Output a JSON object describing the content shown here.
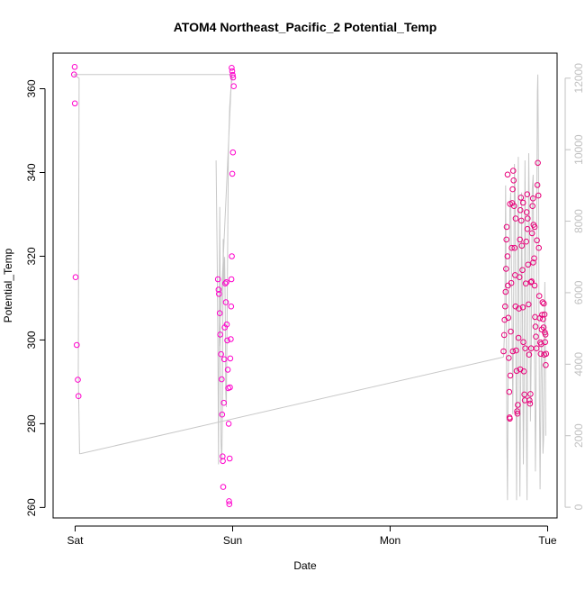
{
  "chart_data": {
    "type": "scatter",
    "title": "ATOM4 Northeast_Pacific_2 Potential_Temp",
    "xlabel": "Date",
    "ylabel": "Potential_Temp",
    "x_ticks": [
      {
        "day": 0,
        "label": "Sat"
      },
      {
        "day": 1,
        "label": "Sun"
      },
      {
        "day": 2,
        "label": "Mon"
      },
      {
        "day": 3,
        "label": "Tue"
      }
    ],
    "y_ticks": [
      260,
      280,
      300,
      320,
      340,
      360
    ],
    "y_right_ticks": [
      0,
      2000,
      4000,
      6000,
      8000,
      10000,
      12000
    ],
    "xlim": [
      -0.14,
      3.06
    ],
    "ylim": [
      257.5,
      368.5
    ],
    "y_right_lim": [
      -300,
      12700
    ],
    "colors": {
      "points": "#ff00cc",
      "points_dense": "#e8007a",
      "secondary_line": "#c8c8c8",
      "right_axis": "#c0c0c0"
    },
    "series": [
      {
        "values": [
          [
            -0.003,
            365.2
          ],
          [
            -0.007,
            363.4
          ],
          [
            -0.002,
            356.5
          ],
          [
            0.003,
            315.0
          ],
          [
            0.01,
            298.8
          ],
          [
            0.017,
            290.5
          ],
          [
            0.021,
            286.6
          ],
          [
            0.907,
            314.5
          ],
          [
            0.911,
            312.0
          ],
          [
            0.913,
            311.0
          ],
          [
            0.918,
            306.4
          ],
          [
            0.921,
            301.3
          ],
          [
            0.926,
            296.6
          ],
          [
            0.93,
            290.6
          ],
          [
            0.933,
            282.2
          ],
          [
            0.936,
            272.2
          ],
          [
            0.938,
            271.1
          ],
          [
            0.94,
            264.9
          ],
          [
            0.944,
            285.0
          ],
          [
            0.947,
            295.4
          ],
          [
            0.95,
            303.0
          ],
          [
            0.953,
            313.5
          ],
          [
            0.957,
            309.0
          ],
          [
            0.96,
            313.8
          ],
          [
            0.963,
            303.7
          ],
          [
            0.966,
            299.9
          ],
          [
            0.969,
            292.9
          ],
          [
            0.972,
            288.5
          ],
          [
            0.975,
            280.0
          ],
          [
            0.977,
            261.5
          ],
          [
            0.979,
            260.8
          ],
          [
            0.981,
            271.7
          ],
          [
            0.983,
            288.7
          ],
          [
            0.985,
            295.6
          ],
          [
            0.988,
            300.2
          ],
          [
            0.99,
            308.0
          ],
          [
            0.992,
            314.5
          ],
          [
            0.995,
            320.0
          ],
          [
            0.998,
            339.7
          ],
          [
            1.002,
            344.8
          ],
          [
            0.994,
            365.0
          ],
          [
            0.997,
            364.2
          ],
          [
            1.0,
            363.3
          ],
          [
            1.003,
            362.7
          ],
          [
            1.007,
            360.6
          ],
          [
            2.72,
            297.3
          ],
          [
            2.724,
            301.2
          ],
          [
            2.727,
            304.8
          ],
          [
            2.73,
            308.0
          ],
          [
            2.733,
            311.5
          ],
          [
            2.736,
            317.0
          ],
          [
            2.738,
            324.0
          ],
          [
            2.74,
            327.0
          ],
          [
            2.745,
            320.0
          ],
          [
            2.748,
            313.0
          ],
          [
            2.75,
            305.3
          ],
          [
            2.753,
            295.7
          ],
          [
            2.756,
            287.6
          ],
          [
            2.758,
            281.5
          ],
          [
            2.76,
            281.2
          ],
          [
            2.763,
            291.5
          ],
          [
            2.766,
            302.0
          ],
          [
            2.769,
            313.6
          ],
          [
            2.772,
            322.0
          ],
          [
            2.775,
            332.7
          ],
          [
            2.778,
            336.0
          ],
          [
            2.781,
            340.4
          ],
          [
            2.784,
            338.1
          ],
          [
            2.787,
            332.0
          ],
          [
            2.79,
            322.0
          ],
          [
            2.793,
            315.5
          ],
          [
            2.796,
            308.0
          ],
          [
            2.8,
            297.5
          ],
          [
            2.803,
            292.6
          ],
          [
            2.806,
            283.0
          ],
          [
            2.808,
            282.4
          ],
          [
            2.811,
            284.5
          ],
          [
            2.815,
            300.5
          ],
          [
            2.818,
            307.5
          ],
          [
            2.821,
            315.0
          ],
          [
            2.824,
            324.0
          ],
          [
            2.827,
            331.0
          ],
          [
            2.83,
            334.0
          ],
          [
            2.833,
            328.5
          ],
          [
            2.836,
            322.5
          ],
          [
            2.84,
            316.7
          ],
          [
            2.843,
            307.8
          ],
          [
            2.846,
            299.5
          ],
          [
            2.849,
            292.5
          ],
          [
            2.852,
            287.0
          ],
          [
            2.855,
            285.6
          ],
          [
            2.858,
            298.0
          ],
          [
            2.861,
            313.5
          ],
          [
            2.864,
            323.5
          ],
          [
            2.867,
            330.5
          ],
          [
            2.87,
            334.8
          ],
          [
            2.873,
            329.0
          ],
          [
            2.876,
            318.0
          ],
          [
            2.879,
            308.5
          ],
          [
            2.882,
            296.5
          ],
          [
            2.885,
            285.6
          ],
          [
            2.888,
            284.8
          ],
          [
            2.891,
            287.1
          ],
          [
            2.895,
            298.0
          ],
          [
            2.898,
            314.0
          ],
          [
            2.901,
            325.5
          ],
          [
            2.904,
            332.0
          ],
          [
            2.907,
            333.8
          ],
          [
            2.91,
            327.5
          ],
          [
            2.914,
            319.5
          ],
          [
            2.917,
            313.0
          ],
          [
            2.92,
            305.5
          ],
          [
            2.923,
            303.2
          ],
          [
            2.926,
            300.8
          ],
          [
            2.929,
            298.0
          ],
          [
            2.932,
            323.8
          ],
          [
            2.935,
            337.0
          ],
          [
            2.938,
            342.3
          ],
          [
            2.941,
            334.5
          ],
          [
            2.944,
            322.0
          ],
          [
            2.947,
            310.5
          ],
          [
            2.95,
            305.2
          ],
          [
            2.953,
            299.4
          ],
          [
            2.956,
            296.7
          ],
          [
            2.959,
            299.0
          ],
          [
            2.962,
            302.5
          ],
          [
            2.965,
            306.0
          ],
          [
            2.968,
            309.0
          ],
          [
            2.971,
            305.0
          ],
          [
            2.974,
            303.0
          ],
          [
            2.976,
            308.7
          ],
          [
            2.978,
            296.5
          ],
          [
            2.98,
            306.1
          ],
          [
            2.982,
            301.8
          ],
          [
            2.984,
            299.5
          ],
          [
            2.986,
            301.3
          ],
          [
            2.988,
            294.0
          ],
          [
            2.99,
            296.7
          ],
          [
            2.746,
            339.5
          ],
          [
            2.761,
            332.5
          ],
          [
            2.779,
            297.3
          ],
          [
            2.797,
            329.0
          ],
          [
            2.826,
            293.0
          ],
          [
            2.844,
            332.8
          ],
          [
            2.872,
            326.5
          ],
          [
            2.893,
            313.8
          ],
          [
            2.908,
            318.5
          ],
          [
            2.918,
            327.0
          ]
        ]
      }
    ],
    "secondary_series": {
      "axis": "right",
      "style": "line",
      "values": [
        [
          -0.01,
          12100
        ],
        [
          0.025,
          12000
        ],
        [
          0.02,
          3800
        ],
        [
          0.028,
          1500
        ],
        [
          0.035,
          1500
        ],
        [
          0.895,
          9700
        ],
        [
          0.902,
          7000
        ],
        [
          0.907,
          4000
        ],
        [
          0.91,
          1200
        ],
        [
          0.913,
          4000
        ],
        [
          0.918,
          8400
        ],
        [
          0.922,
          5600
        ],
        [
          0.926,
          1800
        ],
        [
          0.931,
          1300
        ],
        [
          0.935,
          2400
        ],
        [
          0.94,
          7500
        ],
        [
          0.945,
          6200
        ],
        [
          0.949,
          7000
        ],
        [
          0.953,
          5500
        ],
        [
          0.956,
          3200
        ],
        [
          0.96,
          2800
        ],
        [
          0.966,
          5800
        ],
        [
          0.973,
          10000
        ],
        [
          0.981,
          11200
        ],
        [
          0.99,
          11800
        ],
        [
          0.998,
          12000
        ],
        [
          0.994,
          12100
        ],
        [
          0.915,
          4500
        ],
        [
          2.72,
          4200
        ],
        [
          2.728,
          5100
        ],
        [
          2.733,
          9000
        ],
        [
          2.737,
          6000
        ],
        [
          2.741,
          1900
        ],
        [
          2.745,
          200
        ],
        [
          2.749,
          3500
        ],
        [
          2.754,
          5200
        ],
        [
          2.76,
          8300
        ],
        [
          2.766,
          8800
        ],
        [
          2.773,
          5600
        ],
        [
          2.779,
          2600
        ],
        [
          2.783,
          5000
        ],
        [
          2.789,
          9600
        ],
        [
          2.795,
          8400
        ],
        [
          2.798,
          4500
        ],
        [
          2.803,
          200
        ],
        [
          2.808,
          5200
        ],
        [
          2.814,
          9800
        ],
        [
          2.819,
          4100
        ],
        [
          2.824,
          300
        ],
        [
          2.83,
          4400
        ],
        [
          2.835,
          8800
        ],
        [
          2.84,
          5400
        ],
        [
          2.846,
          1200
        ],
        [
          2.85,
          3100
        ],
        [
          2.856,
          9700
        ],
        [
          2.86,
          7400
        ],
        [
          2.865,
          2300
        ],
        [
          2.869,
          200
        ],
        [
          2.874,
          5400
        ],
        [
          2.88,
          9900
        ],
        [
          2.886,
          7000
        ],
        [
          2.891,
          2400
        ],
        [
          2.896,
          4200
        ],
        [
          2.902,
          8900
        ],
        [
          2.908,
          9300
        ],
        [
          2.913,
          5600
        ],
        [
          2.918,
          3800
        ],
        [
          2.922,
          1000
        ],
        [
          2.926,
          2600
        ],
        [
          2.931,
          8200
        ],
        [
          2.935,
          11600
        ],
        [
          2.938,
          12100
        ],
        [
          2.942,
          9300
        ],
        [
          2.945,
          5200
        ],
        [
          2.948,
          2800
        ],
        [
          2.952,
          500
        ],
        [
          2.955,
          2000
        ],
        [
          2.958,
          3800
        ],
        [
          2.962,
          4700
        ],
        [
          2.966,
          3200
        ],
        [
          2.97,
          1500
        ],
        [
          2.974,
          1900
        ],
        [
          2.978,
          4500
        ],
        [
          2.982,
          6300
        ],
        [
          2.985,
          4800
        ],
        [
          2.988,
          2000
        ]
      ],
      "connector": [
        [
          0.035,
          1500
        ],
        [
          2.72,
          4200
        ]
      ],
      "top_connector": [
        [
          -0.007,
          12100
        ],
        [
          0.997,
          12100
        ]
      ]
    }
  }
}
